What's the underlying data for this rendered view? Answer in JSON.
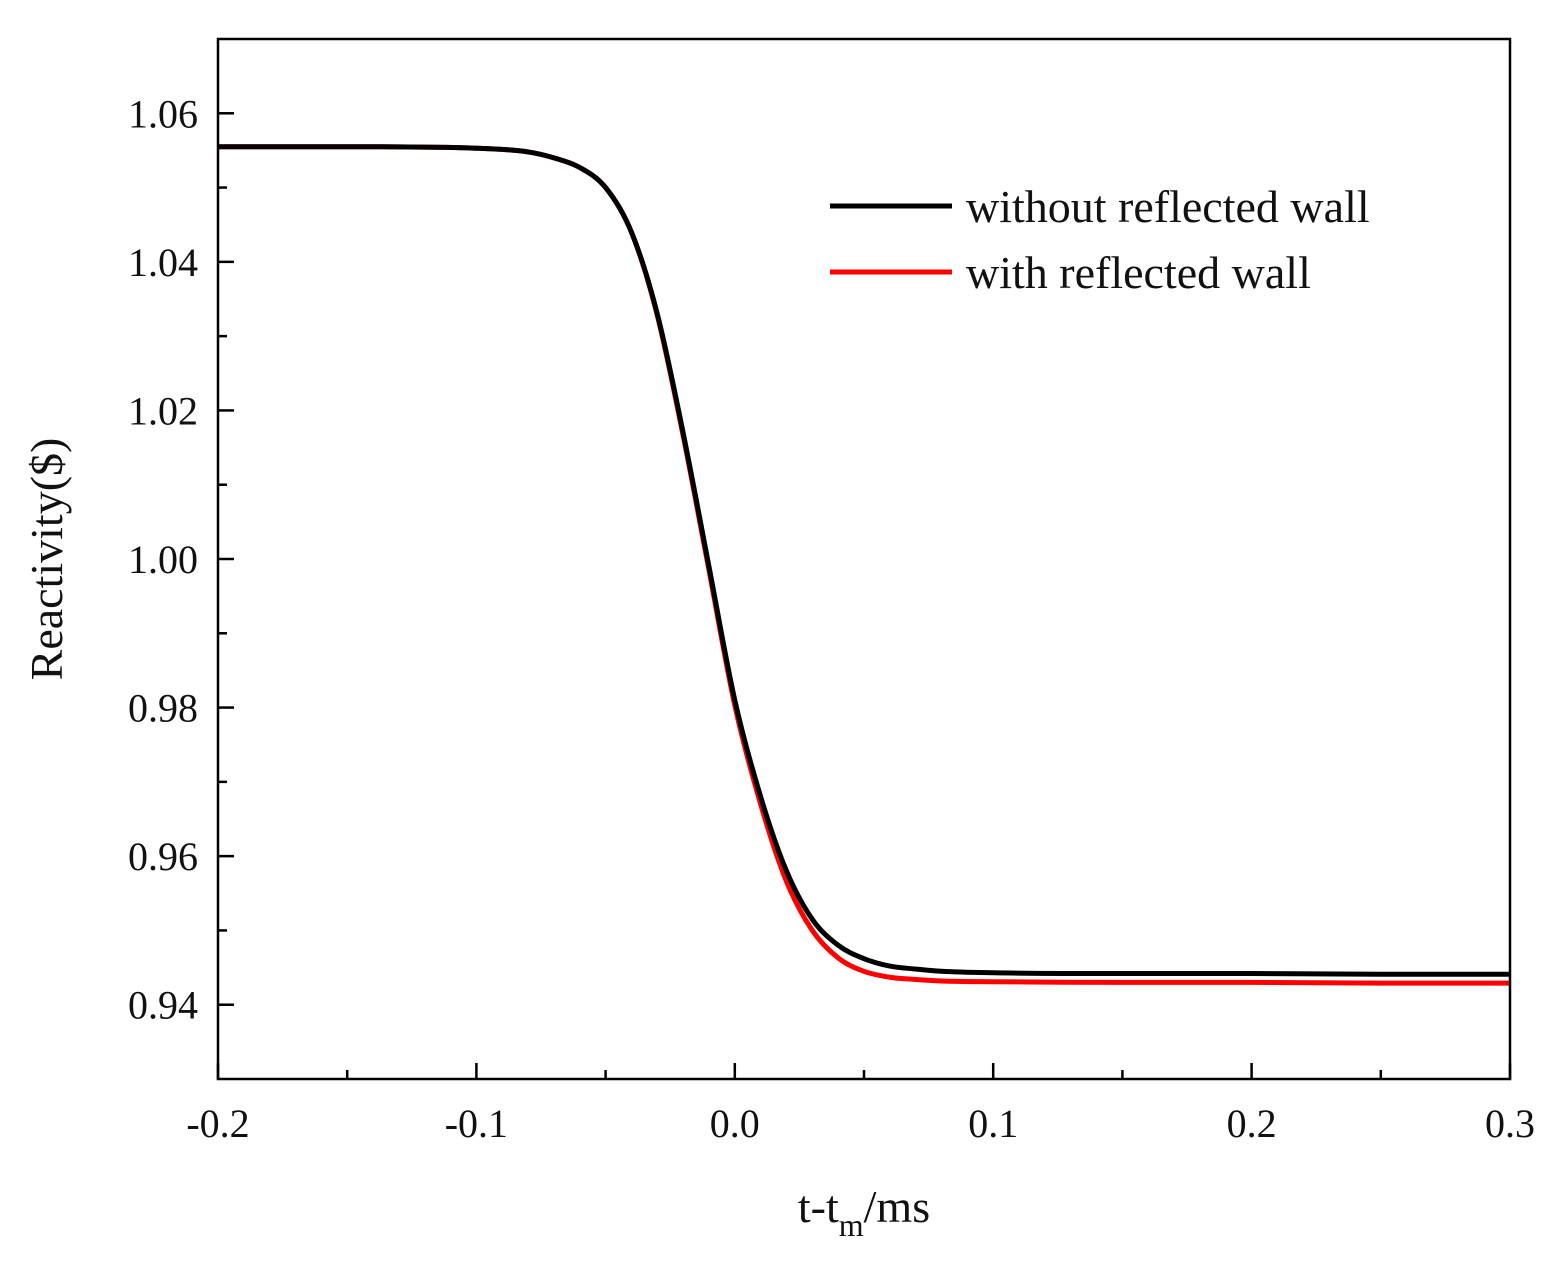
{
  "chart_data": {
    "type": "line",
    "title": "",
    "xlabel": {
      "main": "t-t",
      "sub": "m",
      "suffix": "/ms"
    },
    "ylabel": "Reactivity($)",
    "xlim": [
      -0.2,
      0.3
    ],
    "ylim": [
      0.93,
      1.07
    ],
    "x_ticks": [
      -0.2,
      -0.1,
      0.0,
      0.1,
      0.2,
      0.3
    ],
    "x_tick_labels": [
      "-0.2",
      "-0.1",
      "0.0",
      "0.1",
      "0.2",
      "0.3"
    ],
    "x_minor_ticks": [
      -0.15,
      -0.05,
      0.05,
      0.15,
      0.25
    ],
    "y_ticks": [
      0.94,
      0.96,
      0.98,
      1.0,
      1.02,
      1.04,
      1.06
    ],
    "y_tick_labels": [
      "0.94",
      "0.96",
      "0.98",
      "1.00",
      "1.02",
      "1.04",
      "1.06"
    ],
    "y_minor_ticks": [
      0.95,
      0.97,
      0.99,
      1.01,
      1.03,
      1.05
    ],
    "grid": false,
    "legend_position": "top-right",
    "series": [
      {
        "name": "without reflected wall",
        "color": "#000000",
        "x": [
          -0.2,
          -0.15,
          -0.1,
          -0.08,
          -0.07,
          -0.06,
          -0.05,
          -0.04,
          -0.03,
          -0.02,
          -0.01,
          0.0,
          0.01,
          0.02,
          0.03,
          0.04,
          0.05,
          0.06,
          0.07,
          0.08,
          0.1,
          0.15,
          0.2,
          0.25,
          0.3
        ],
        "values": [
          1.0555,
          1.0555,
          1.0553,
          1.0548,
          1.054,
          1.0527,
          1.05,
          1.044,
          1.033,
          1.017,
          0.999,
          0.981,
          0.968,
          0.958,
          0.9515,
          0.948,
          0.9462,
          0.9452,
          0.9448,
          0.9445,
          0.9443,
          0.9442,
          0.9442,
          0.9441,
          0.9441
        ]
      },
      {
        "name": "with reflected wall",
        "color": "#ff0000",
        "x": [
          -0.2,
          -0.15,
          -0.1,
          -0.08,
          -0.07,
          -0.06,
          -0.05,
          -0.04,
          -0.03,
          -0.02,
          -0.01,
          0.0,
          0.01,
          0.02,
          0.03,
          0.04,
          0.05,
          0.06,
          0.07,
          0.08,
          0.1,
          0.15,
          0.2,
          0.25,
          0.3
        ],
        "values": [
          1.0555,
          1.0555,
          1.0553,
          1.0548,
          1.054,
          1.0527,
          1.05,
          1.044,
          1.0328,
          1.0166,
          0.9985,
          0.9803,
          0.967,
          0.9566,
          0.95,
          0.9463,
          0.9445,
          0.9437,
          0.9434,
          0.9432,
          0.9431,
          0.943,
          0.943,
          0.9429,
          0.9429
        ]
      }
    ]
  }
}
